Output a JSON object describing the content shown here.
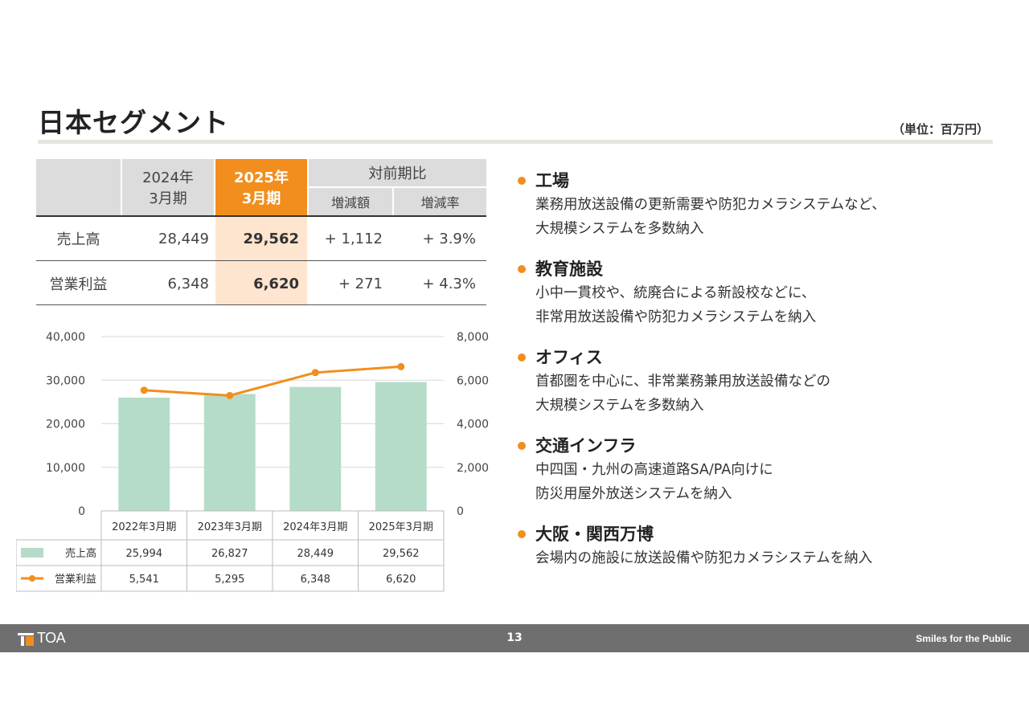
{
  "title": "日本セグメント",
  "unit": "（単位：百万円）",
  "summary": {
    "col_2024": "2024年\n3月期",
    "col_2024_a": "2024年",
    "col_2024_b": "3月期",
    "col_2025_a": "2025年",
    "col_2025_b": "3月期",
    "col_yoy": "対前期比",
    "col_diff": "増減額",
    "col_rate": "増減率",
    "rows": [
      {
        "label": "売上高",
        "v2024": "28,449",
        "v2025": "29,562",
        "diff": "+ 1,112",
        "rate": "+ 3.9%"
      },
      {
        "label": "営業利益",
        "v2024": "6,348",
        "v2025": "6,620",
        "diff": "+ 271",
        "rate": "+ 4.3%"
      }
    ]
  },
  "chart_data": {
    "type": "bar",
    "categories": [
      "2022年3月期",
      "2023年3月期",
      "2024年3月期",
      "2025年3月期"
    ],
    "series": [
      {
        "name": "売上高",
        "type": "bar",
        "axis": "left",
        "values": [
          25994,
          26827,
          28449,
          29562
        ],
        "labels": [
          "25,994",
          "26,827",
          "28,449",
          "29,562"
        ],
        "color": "#b5dcc8"
      },
      {
        "name": "営業利益",
        "type": "line",
        "axis": "right",
        "values": [
          5541,
          5295,
          6348,
          6620
        ],
        "labels": [
          "5,541",
          "5,295",
          "6,348",
          "6,620"
        ],
        "color": "#f28e1d"
      }
    ],
    "y_left": {
      "min": 0,
      "max": 40000,
      "ticks": [
        "0",
        "10,000",
        "20,000",
        "30,000",
        "40,000"
      ],
      "tick_values": [
        0,
        10000,
        20000,
        30000,
        40000
      ]
    },
    "y_right": {
      "min": 0,
      "max": 8000,
      "ticks": [
        "0",
        "2,000",
        "4,000",
        "6,000",
        "8,000"
      ],
      "tick_values": [
        0,
        2000,
        4000,
        6000,
        8000
      ]
    },
    "grid": true,
    "legend": "data-table-below"
  },
  "bullets": [
    {
      "head": "工場",
      "lines": [
        "業務用放送設備の更新需要や防犯カメラシステムなど、",
        "大規模システムを多数納入"
      ]
    },
    {
      "head": "教育施設",
      "lines": [
        "小中一貫校や、統廃合による新設校などに、",
        "非常用放送設備や防犯カメラシステムを納入"
      ]
    },
    {
      "head": "オフィス",
      "lines": [
        "首都圏を中心に、非常業務兼用放送設備などの",
        "大規模システムを多数納入"
      ]
    },
    {
      "head": "交通インフラ",
      "lines": [
        "中四国・九州の高速道路SA/PA向けに",
        "防災用屋外放送システムを納入"
      ]
    },
    {
      "head": "大阪・関西万博",
      "lines": [
        "会場内の施設に放送設備や防犯カメラシステムを納入"
      ]
    }
  ],
  "footer": {
    "logo": "TOA",
    "page": "13",
    "slogan": "Smiles for the Public"
  },
  "colors": {
    "accent": "#f28e1d",
    "accent_light": "#fde5cf",
    "bar": "#b5dcc8",
    "footer": "#6f6f6f"
  }
}
